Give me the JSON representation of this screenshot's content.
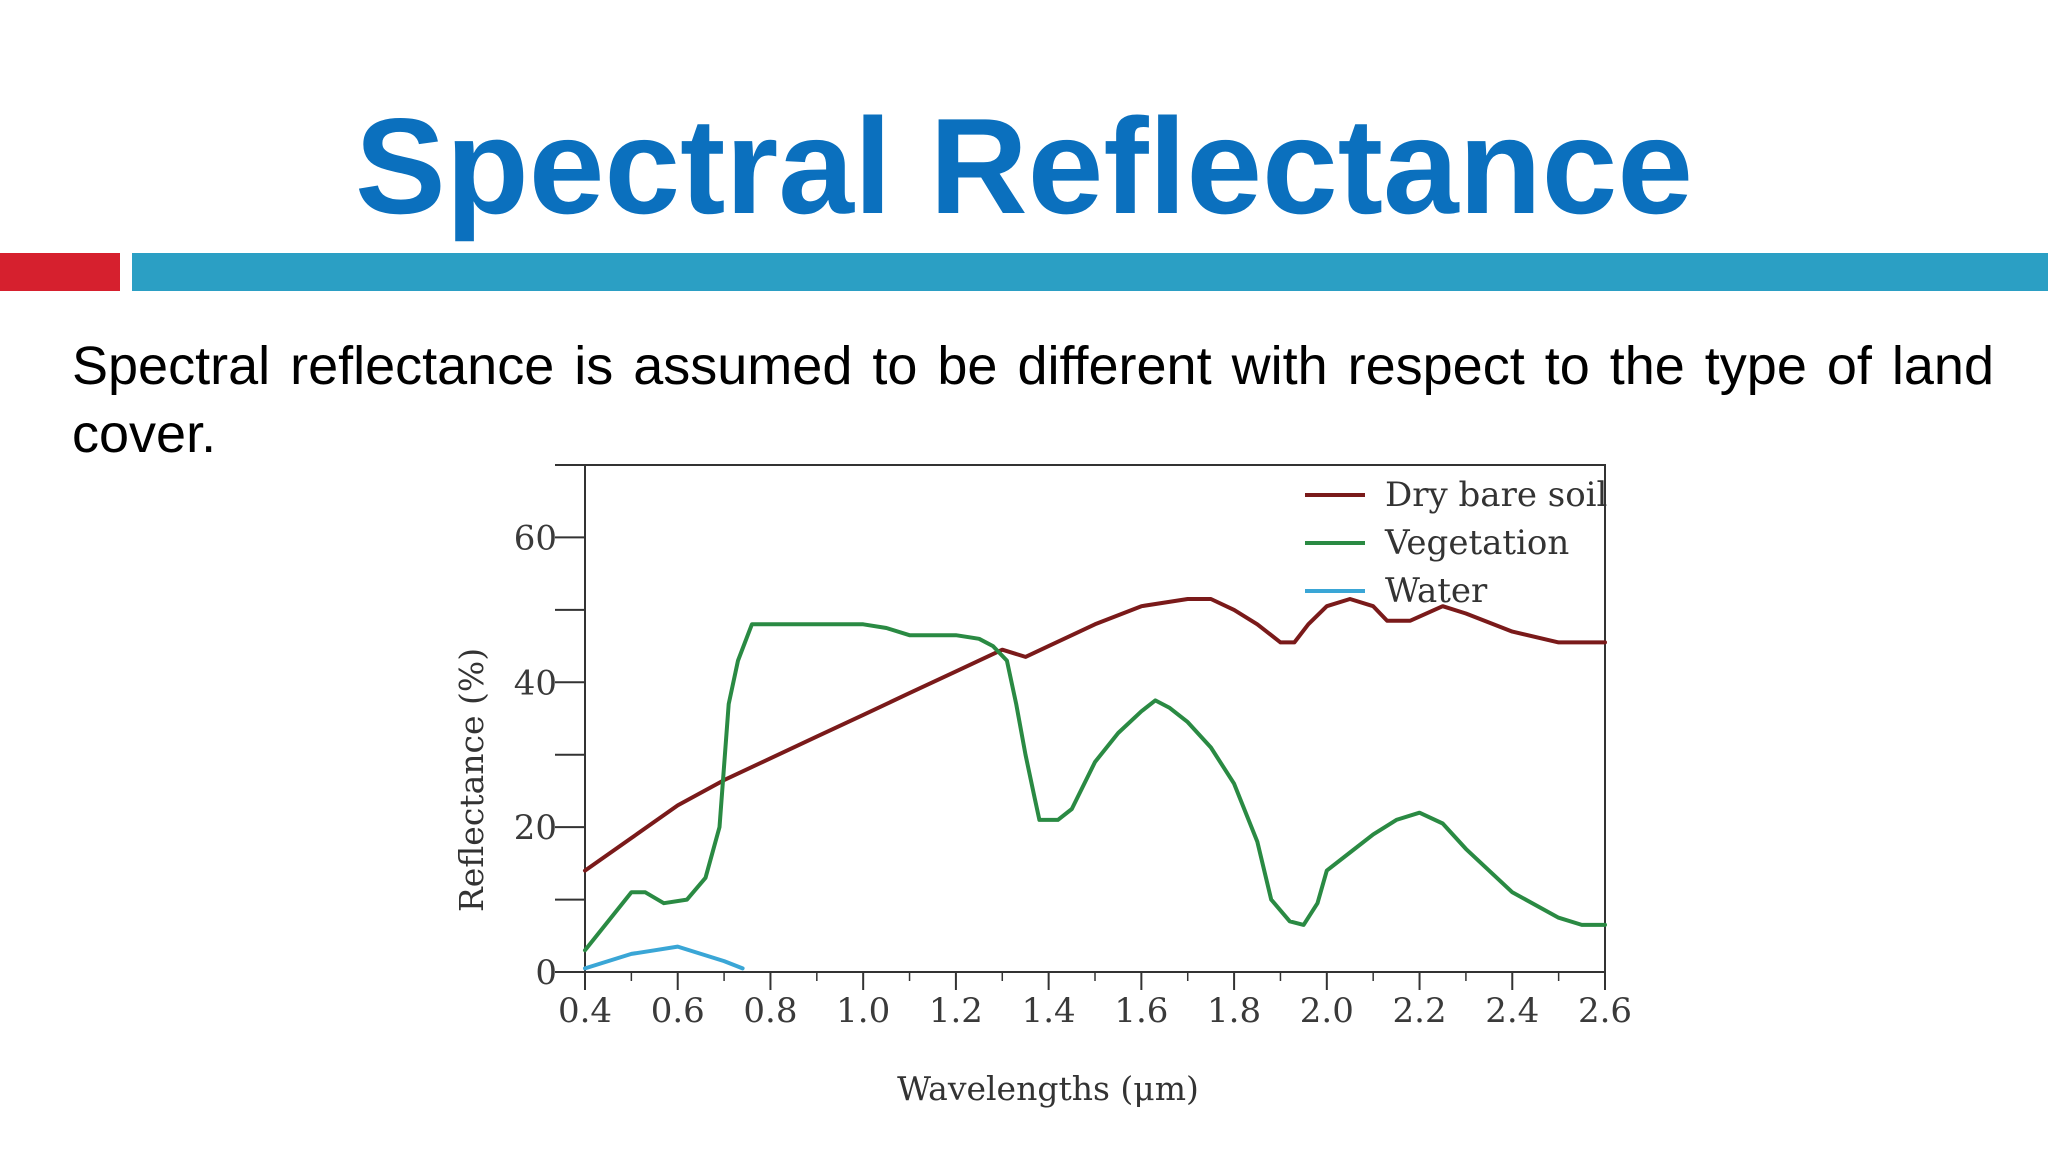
{
  "slide": {
    "title": "Spectral Reflectance",
    "body": "Spectral reflectance is assumed to be different with respect to the type of land cover."
  },
  "colors": {
    "title": "#0b70be",
    "accent_red": "#d6202e",
    "accent_blue": "#2b9fc4"
  },
  "chart_data": {
    "type": "line",
    "title": "",
    "xlabel": "Wavelengths (μm)",
    "ylabel": "Reflectance (%)",
    "xlim": [
      0.4,
      2.6
    ],
    "ylim": [
      0,
      70
    ],
    "x_ticks": [
      "0.4",
      "0.6",
      "0.8",
      "1.0",
      "1.2",
      "1.4",
      "1.6",
      "1.8",
      "2.0",
      "2.2",
      "2.4",
      "2.6"
    ],
    "y_ticks": [
      "0",
      "20",
      "40",
      "60"
    ],
    "grid": false,
    "legend_position": "top-right",
    "series": [
      {
        "name": "Dry bare soil",
        "color": "#7a1a1a",
        "points": [
          [
            0.4,
            14
          ],
          [
            0.5,
            18.5
          ],
          [
            0.6,
            23
          ],
          [
            0.7,
            26.5
          ],
          [
            0.8,
            29.5
          ],
          [
            0.9,
            32.5
          ],
          [
            1.0,
            35.5
          ],
          [
            1.1,
            38.5
          ],
          [
            1.2,
            41.5
          ],
          [
            1.3,
            44.5
          ],
          [
            1.35,
            43.5
          ],
          [
            1.4,
            45
          ],
          [
            1.5,
            48
          ],
          [
            1.6,
            50.5
          ],
          [
            1.7,
            51.5
          ],
          [
            1.75,
            51.5
          ],
          [
            1.8,
            50
          ],
          [
            1.85,
            48
          ],
          [
            1.9,
            45.5
          ],
          [
            1.93,
            45.5
          ],
          [
            1.96,
            48
          ],
          [
            2.0,
            50.5
          ],
          [
            2.05,
            51.5
          ],
          [
            2.1,
            50.5
          ],
          [
            2.13,
            48.5
          ],
          [
            2.18,
            48.5
          ],
          [
            2.25,
            50.5
          ],
          [
            2.3,
            49.5
          ],
          [
            2.4,
            47
          ],
          [
            2.5,
            45.5
          ],
          [
            2.6,
            45.5
          ]
        ]
      },
      {
        "name": "Vegetation",
        "color": "#2a8a43",
        "points": [
          [
            0.4,
            3
          ],
          [
            0.45,
            7
          ],
          [
            0.5,
            11
          ],
          [
            0.53,
            11
          ],
          [
            0.57,
            9.5
          ],
          [
            0.62,
            10
          ],
          [
            0.66,
            13
          ],
          [
            0.69,
            20
          ],
          [
            0.71,
            37
          ],
          [
            0.73,
            43
          ],
          [
            0.76,
            48
          ],
          [
            0.8,
            48
          ],
          [
            0.9,
            48
          ],
          [
            1.0,
            48
          ],
          [
            1.05,
            47.5
          ],
          [
            1.1,
            46.5
          ],
          [
            1.2,
            46.5
          ],
          [
            1.25,
            46
          ],
          [
            1.28,
            45
          ],
          [
            1.31,
            43
          ],
          [
            1.33,
            37
          ],
          [
            1.35,
            30
          ],
          [
            1.37,
            24
          ],
          [
            1.38,
            21
          ],
          [
            1.42,
            21
          ],
          [
            1.45,
            22.5
          ],
          [
            1.5,
            29
          ],
          [
            1.55,
            33
          ],
          [
            1.6,
            36
          ],
          [
            1.63,
            37.5
          ],
          [
            1.66,
            36.5
          ],
          [
            1.7,
            34.5
          ],
          [
            1.75,
            31
          ],
          [
            1.8,
            26
          ],
          [
            1.85,
            18
          ],
          [
            1.88,
            10
          ],
          [
            1.92,
            7
          ],
          [
            1.95,
            6.5
          ],
          [
            1.98,
            9.5
          ],
          [
            2.0,
            14
          ],
          [
            2.05,
            16.5
          ],
          [
            2.1,
            19
          ],
          [
            2.15,
            21
          ],
          [
            2.2,
            22
          ],
          [
            2.25,
            20.5
          ],
          [
            2.3,
            17
          ],
          [
            2.4,
            11
          ],
          [
            2.5,
            7.5
          ],
          [
            2.55,
            6.5
          ],
          [
            2.6,
            6.5
          ]
        ]
      },
      {
        "name": "Water",
        "color": "#3aa6d6",
        "points": [
          [
            0.4,
            0.5
          ],
          [
            0.45,
            1.5
          ],
          [
            0.5,
            2.5
          ],
          [
            0.55,
            3
          ],
          [
            0.6,
            3.5
          ],
          [
            0.65,
            2.5
          ],
          [
            0.7,
            1.5
          ],
          [
            0.74,
            0.5
          ]
        ]
      }
    ]
  }
}
